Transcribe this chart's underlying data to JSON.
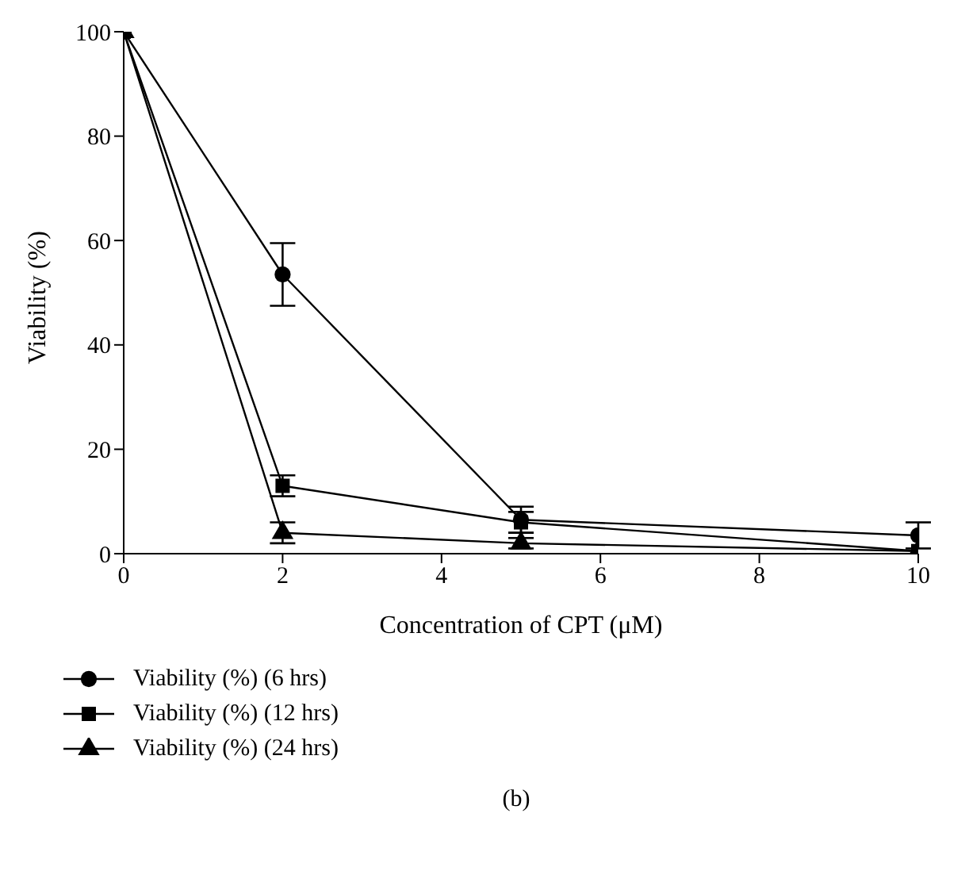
{
  "chart_data": {
    "type": "line",
    "xlabel": "Concentration of CPT (μM)",
    "ylabel": "Viability (%)",
    "x": [
      0,
      2,
      5,
      10
    ],
    "series": [
      {
        "name": "Viability (%) (6 hrs)",
        "color": "#000000",
        "marker": "circle",
        "values": [
          100,
          53.5,
          6.5,
          3.5
        ],
        "errors": [
          null,
          6,
          2.5,
          2.5
        ]
      },
      {
        "name": "Viability (%) (12 hrs)",
        "color": "#000000",
        "marker": "square",
        "values": [
          100,
          13,
          6,
          0.5
        ],
        "errors": [
          null,
          2,
          2,
          null
        ]
      },
      {
        "name": "Viability (%) (24 hrs)",
        "color": "#000000",
        "marker": "triangle",
        "values": [
          100,
          4,
          2,
          0.5
        ],
        "errors": [
          null,
          2,
          1,
          null
        ]
      }
    ],
    "xlim": [
      0,
      10
    ],
    "xticks": [
      0,
      2,
      4,
      6,
      8,
      10
    ],
    "ylim": [
      0,
      100
    ],
    "yticks": [
      0,
      20,
      40,
      60,
      80,
      100
    ],
    "grid": false,
    "legend": "bottom left",
    "line_style": "solid",
    "annotations": [
      "(b)"
    ]
  }
}
